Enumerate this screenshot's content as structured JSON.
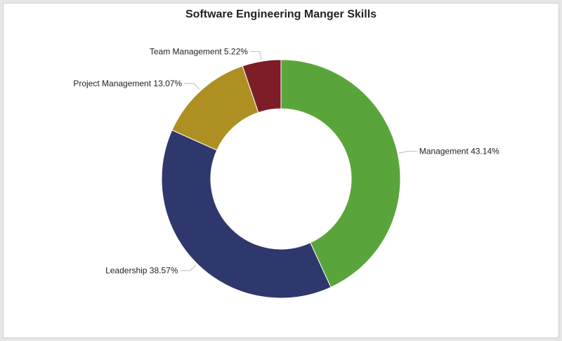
{
  "chart_data": {
    "type": "pie",
    "title": "Software Engineering Manger Skills",
    "slices": [
      {
        "label": "Management 43.14%",
        "value": 43.14,
        "color": "#5aa53b"
      },
      {
        "label": "Leadership 38.57%",
        "value": 38.57,
        "color": "#2e386c"
      },
      {
        "label": "Project Management 13.07%",
        "value": 13.07,
        "color": "#ae8f22"
      },
      {
        "label": "Team Management 5.22%",
        "value": 5.22,
        "color": "#7d1d27"
      }
    ],
    "legend": "none",
    "donut": true
  }
}
